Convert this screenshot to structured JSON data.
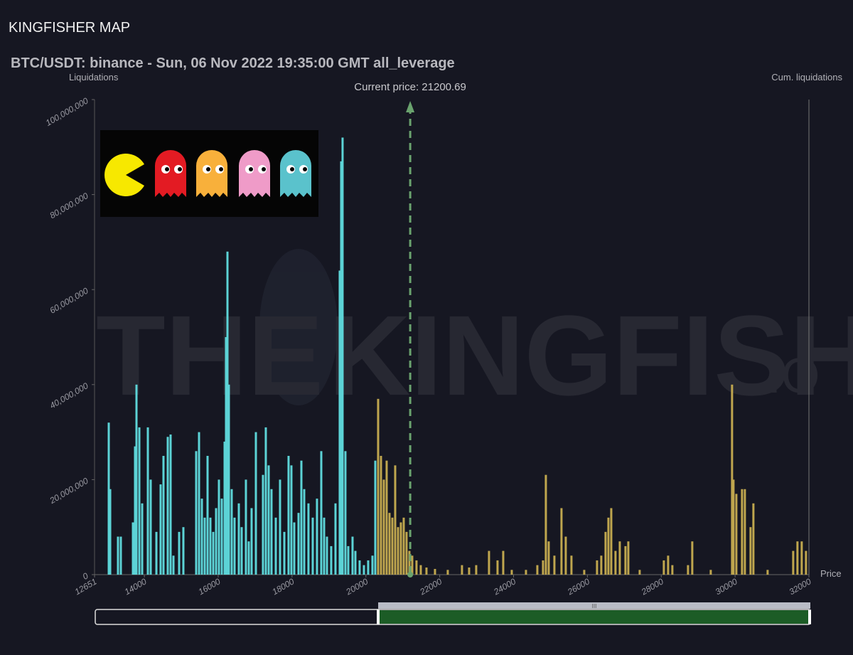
{
  "header": {
    "title": "KINGFISHER MAP"
  },
  "chart_data": {
    "type": "bar",
    "title": "BTC/USDT: binance - Sun, 06 Nov 2022 19:35:00 GMT all_leverage",
    "y_label": "Liquidations",
    "y2_label": "Cum. liquidations",
    "x_label": "Price",
    "watermark": [
      "THE",
      "KINGFISHER",
      ".IO"
    ],
    "current_price": {
      "value": 21200.69,
      "label": "Current price: 21200.69"
    },
    "current_price_color": "#6aa36e",
    "grid": false,
    "xlim": [
      12651,
      32000
    ],
    "xticks": [
      12651,
      14000,
      16000,
      18000,
      20000,
      22000,
      24000,
      26000,
      28000,
      30000,
      32000
    ],
    "ylim": [
      0,
      100000000
    ],
    "yticks": [
      0,
      {
        "value": 20000000,
        "label": "20,000,000"
      },
      {
        "value": 40000000,
        "label": "40,000,000"
      },
      {
        "value": 60000000,
        "label": "60,000,000"
      },
      {
        "value": 80000000,
        "label": "80,000,000"
      },
      {
        "value": 100000000,
        "label": "100,000,000"
      }
    ],
    "series": [
      {
        "color": "#5cd3d6",
        "x": [
          13036,
          13075,
          13286,
          13363,
          13691,
          13748,
          13787,
          13864,
          13941,
          14095,
          14172,
          14326,
          14441,
          14518,
          14634,
          14711,
          14788,
          14942,
          15057,
          15404,
          15481,
          15558,
          15635,
          15712,
          15789,
          15866,
          15943,
          16020,
          16097,
          16174,
          16212,
          16251,
          16289,
          16366,
          16443,
          16559,
          16636,
          16751,
          16828,
          16905,
          17021,
          17213,
          17290,
          17367,
          17444,
          17560,
          17675,
          17791,
          17906,
          17983,
          18060,
          18176,
          18253,
          18330,
          18445,
          18561,
          18676,
          18792,
          18869,
          18946,
          19061,
          19177,
          19292,
          19331,
          19369,
          19446,
          19523,
          19639,
          19716,
          19831,
          19947,
          20062,
          20178,
          20255
        ],
        "values": [
          32000000,
          18000000,
          8000000,
          8000000,
          11000000,
          27000000,
          40000000,
          31000000,
          15000000,
          31000000,
          20000000,
          9000000,
          19000000,
          25000000,
          29000000,
          29500000,
          4000000,
          9000000,
          10000000,
          26000000,
          30000000,
          16000000,
          12000000,
          25000000,
          12000000,
          9000000,
          14000000,
          20000000,
          16000000,
          28000000,
          50000000,
          68000000,
          40000000,
          18000000,
          12000000,
          15000000,
          10000000,
          20000000,
          7000000,
          14000000,
          30000000,
          21000000,
          31000000,
          23000000,
          18000000,
          12000000,
          20000000,
          9000000,
          25000000,
          23000000,
          11000000,
          13000000,
          24000000,
          18000000,
          15000000,
          12000000,
          16000000,
          26000000,
          12000000,
          8000000,
          6000000,
          15000000,
          64000000,
          87000000,
          92000000,
          26000000,
          6000000,
          8000000,
          5000000,
          3000000,
          2000000,
          3000000,
          4000000,
          24000000
        ]
      },
      {
        "color": "#bfa64e",
        "x": [
          20332,
          20409,
          20486,
          20563,
          20640,
          20717,
          20794,
          20871,
          20948,
          21025,
          21102,
          21179,
          21256,
          21371,
          21487,
          21641,
          21872,
          22218,
          22603,
          22796,
          22988,
          23335,
          23566,
          23720,
          23951,
          24336,
          24644,
          24798,
          24875,
          24952,
          25106,
          25298,
          25414,
          25568,
          25914,
          26261,
          26376,
          26492,
          26569,
          26646,
          26761,
          26877,
          27031,
          27108,
          27416,
          28070,
          28186,
          28301,
          28725,
          28840,
          29341,
          29918,
          29957,
          30034,
          30188,
          30265,
          30419,
          30496,
          30881,
          31574,
          31689,
          31805,
          31920
        ],
        "values": [
          37000000,
          25000000,
          20000000,
          24000000,
          13000000,
          12000000,
          23000000,
          10000000,
          11000000,
          12000000,
          9000000,
          5000000,
          4000000,
          3000000,
          2000000,
          1500000,
          1200000,
          1000000,
          2000000,
          1500000,
          2000000,
          5000000,
          3000000,
          5000000,
          1000000,
          1000000,
          2000000,
          3000000,
          21000000,
          7000000,
          4000000,
          14000000,
          8000000,
          4000000,
          1000000,
          3000000,
          4000000,
          9000000,
          12000000,
          14000000,
          5000000,
          7000000,
          6000000,
          7000000,
          1000000,
          3000000,
          4000000,
          2000000,
          2000000,
          7000000,
          1000000,
          40000000,
          20000000,
          17000000,
          18000000,
          18000000,
          10000000,
          15000000,
          1000000,
          5000000,
          7000000,
          7000000,
          5000000
        ]
      }
    ]
  }
}
